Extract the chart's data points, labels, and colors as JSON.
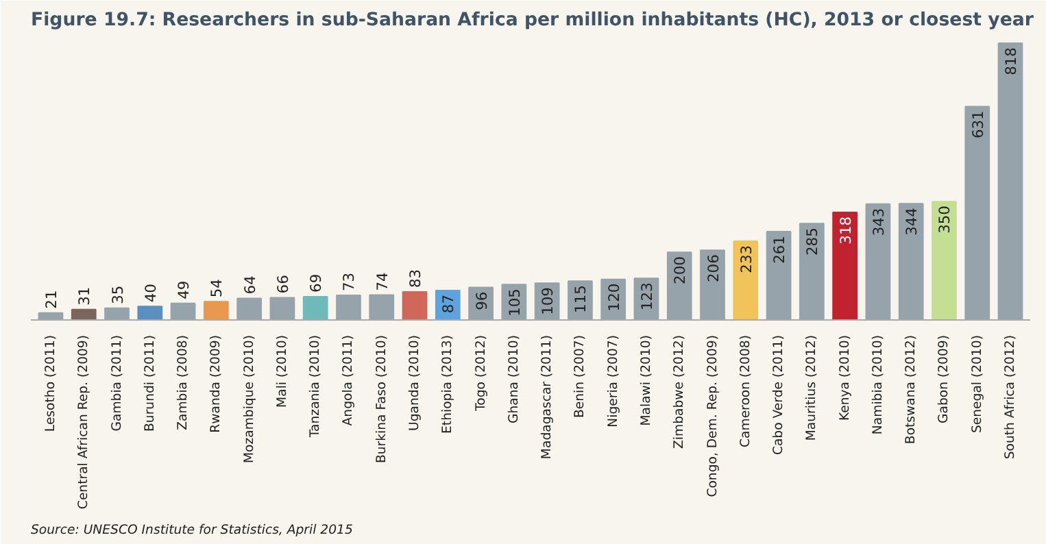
{
  "chart_data": {
    "type": "bar",
    "title": "Figure 19.7: Researchers in sub-Saharan Africa per million inhabitants (HC), 2013 or closest year",
    "categories": [
      "Lesotho (2011)",
      "Central African Rep. (2009)",
      "Gambia (2011)",
      "Burundi (2011)",
      "Zambia (2008)",
      "Rwanda (2009)",
      "Mozambique (2010)",
      "Mali (2010)",
      "Tanzania (2010)",
      "Angola (2011)",
      "Burkina Faso (2010)",
      "Uganda (2010)",
      "Ethiopia (2013)",
      "Togo (2012)",
      "Ghana (2010)",
      "Madagascar (2011)",
      "Benin (2007)",
      "Nigeria (2007)",
      "Malawi (2010)",
      "Zimbabwe (2012)",
      "Congo, Dem. Rep. (2009)",
      "Cameroon (2008)",
      "Cabo Verde (2011)",
      "Mauritius (2012)",
      "Kenya (2010)",
      "Namibia (2010)",
      "Botswana (2012)",
      "Gabon (2009)",
      "Senegal (2010)",
      "South Africa (2012)"
    ],
    "values": [
      21,
      31,
      35,
      40,
      49,
      54,
      64,
      66,
      69,
      73,
      74,
      83,
      87,
      96,
      105,
      109,
      115,
      120,
      123,
      200,
      206,
      233,
      261,
      285,
      318,
      343,
      344,
      350,
      631,
      818
    ],
    "colors": [
      "#97a3ab",
      "#7a665b",
      "#97a3ab",
      "#5b8fc0",
      "#97a3ab",
      "#e8994f",
      "#97a3ab",
      "#97a3ab",
      "#6fb9b9",
      "#97a3ab",
      "#97a3ab",
      "#d0675b",
      "#5ea3dd",
      "#97a3ab",
      "#97a3ab",
      "#97a3ab",
      "#97a3ab",
      "#97a3ab",
      "#97a3ab",
      "#97a3ab",
      "#97a3ab",
      "#f0c35b",
      "#97a3ab",
      "#97a3ab",
      "#c0222f",
      "#97a3ab",
      "#97a3ab",
      "#c4df93",
      "#97a3ab",
      "#97a3ab"
    ],
    "data_labels": true,
    "annotations": [
      "Source: UNESCO Institute for Statistics, April 2015"
    ]
  }
}
